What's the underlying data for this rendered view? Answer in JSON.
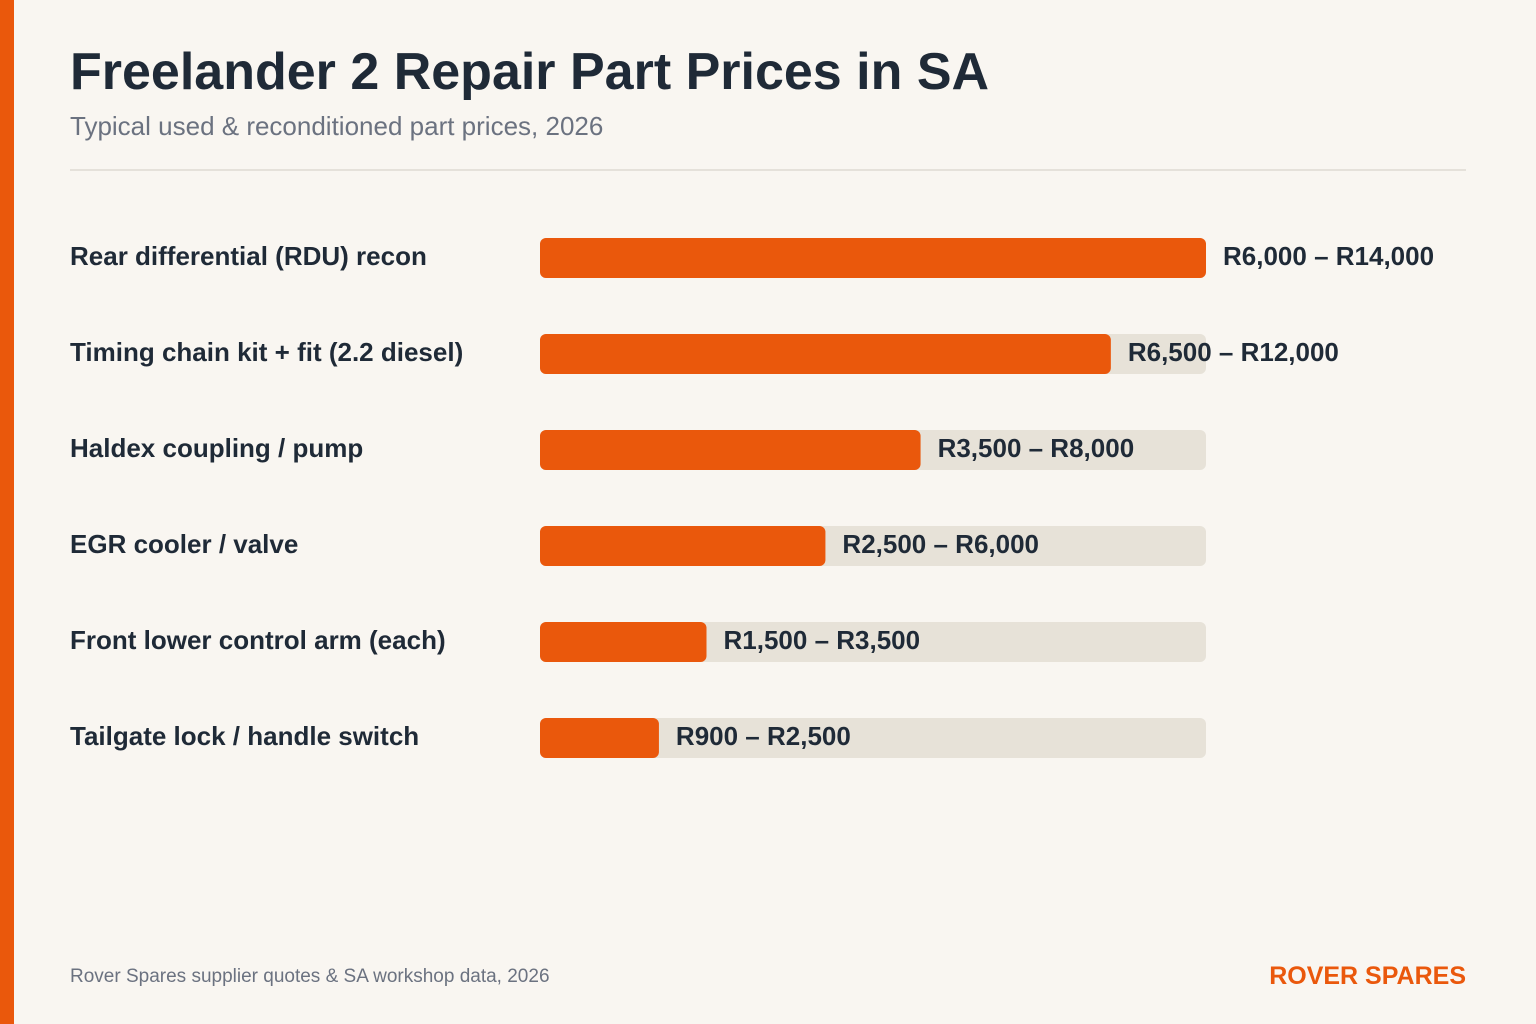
{
  "header": {
    "title": "Freelander 2 Repair Part Prices in SA",
    "subtitle": "Typical used & reconditioned part prices, 2026"
  },
  "footer": {
    "source": "Rover Spares supplier quotes & SA workshop data, 2026",
    "brand": "ROVER SPARES"
  },
  "colors": {
    "accent": "#ea580c",
    "track": "#e7e2d8",
    "text": "#1f2a37",
    "muted": "#6b7280",
    "background": "#f9f6f1"
  },
  "chart_data": {
    "type": "bar",
    "orientation": "horizontal",
    "title": "Freelander 2 Repair Part Prices in SA",
    "subtitle": "Typical used & reconditioned part prices, 2026",
    "xlabel": "",
    "ylabel": "",
    "grid": false,
    "legend": "none",
    "xlim": [
      0,
      14000
    ],
    "categories": [
      "Rear differential (RDU) recon",
      "Timing chain kit + fit (2.2 diesel)",
      "Haldex coupling / pump",
      "EGR cooler / valve",
      "Front lower control arm (each)",
      "Tailgate lock / handle switch"
    ],
    "values": [
      14000,
      12000,
      8000,
      6000,
      3500,
      2500
    ],
    "range_min": [
      6000,
      6500,
      3500,
      2500,
      1500,
      900
    ],
    "labels": [
      "R6,000 – R14,000",
      "R6,500 – R12,000",
      "R3,500 – R8,000",
      "R2,500 – R6,000",
      "R1,500 – R3,500",
      "R900 – R2,500"
    ]
  }
}
